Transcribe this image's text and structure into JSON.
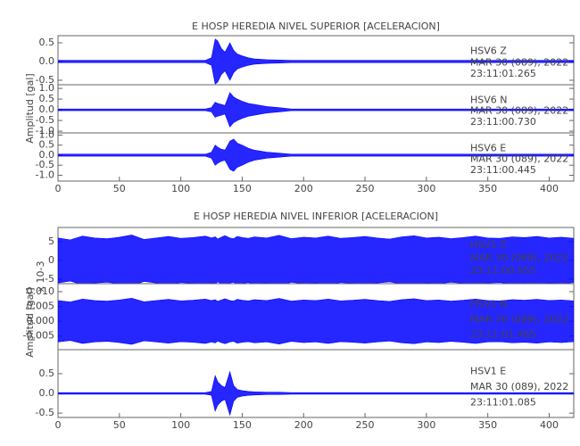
{
  "chart_data": [
    {
      "type": "line",
      "title": "E HOSP HEREDIA NIVEL SUPERIOR [ACELERACION]",
      "ylabel": "Amplitud [gal]",
      "xlim": [
        0,
        420
      ],
      "xticks": [
        0,
        50,
        100,
        150,
        200,
        250,
        300,
        350,
        400
      ],
      "x": [
        0,
        10,
        20,
        30,
        40,
        50,
        60,
        70,
        80,
        90,
        100,
        110,
        120,
        125,
        128,
        130,
        133,
        136,
        140,
        143,
        146,
        150,
        155,
        160,
        170,
        180,
        190,
        200,
        210,
        220,
        230,
        240,
        250,
        260,
        270,
        280,
        290,
        300,
        310,
        320,
        330,
        340,
        350,
        360,
        370,
        380,
        390,
        400,
        410,
        420
      ],
      "panels": [
        {
          "station": "HSV6   Z",
          "date": "MAR 30 (089), 2022",
          "time": "23:11:01.265",
          "color": "#0000ff",
          "ylim": [
            -0.62,
            0.69
          ],
          "yticks": [
            {
              "value": 0.5,
              "label": "0.5"
            },
            {
              "value": 0,
              "label": "0.0"
            },
            {
              "value": -0.5,
              "label": "-0.5"
            }
          ],
          "values": [
            0.03,
            0.03,
            0.03,
            0.03,
            0.03,
            0.03,
            0.03,
            0.03,
            0.03,
            0.03,
            0.03,
            0.03,
            0.03,
            0.1,
            0.6,
            0.55,
            0.35,
            0.25,
            0.5,
            0.3,
            0.2,
            0.15,
            0.1,
            0.07,
            0.05,
            0.04,
            0.03,
            0.03,
            0.03,
            0.03,
            0.03,
            0.03,
            0.03,
            0.03,
            0.03,
            0.03,
            0.03,
            0.03,
            0.03,
            0.03,
            0.03,
            0.03,
            0.03,
            0.03,
            0.03,
            0.03,
            0.03,
            0.03,
            0.03,
            0.03
          ]
        },
        {
          "station": "HSV6   N",
          "date": "MAR 30 (089), 2022",
          "time": "23:11:00.730",
          "color": "#0000ff",
          "ylim": [
            -1.08,
            1.17
          ],
          "yticks": [
            {
              "value": 1,
              "label": "1.0"
            },
            {
              "value": 0.5,
              "label": "0.5"
            },
            {
              "value": 0,
              "label": "0.0"
            },
            {
              "value": -0.5,
              "label": "-0.5"
            },
            {
              "value": -1,
              "label": "-1.0"
            }
          ],
          "values": [
            0.04,
            0.04,
            0.04,
            0.04,
            0.04,
            0.04,
            0.04,
            0.04,
            0.04,
            0.04,
            0.04,
            0.04,
            0.04,
            0.1,
            0.35,
            0.3,
            0.25,
            0.2,
            0.8,
            0.6,
            0.5,
            0.4,
            0.3,
            0.25,
            0.15,
            0.1,
            0.04,
            0.04,
            0.04,
            0.04,
            0.04,
            0.04,
            0.04,
            0.04,
            0.04,
            0.04,
            0.04,
            0.04,
            0.04,
            0.04,
            0.04,
            0.04,
            0.04,
            0.04,
            0.04,
            0.04,
            0.04,
            0.04,
            0.04,
            0.04
          ]
        },
        {
          "station": "HSV6   E",
          "date": "MAR 30 (089), 2022",
          "time": "23:11:00.445",
          "color": "#0000ff",
          "ylim": [
            -1.29,
            1.11
          ],
          "yticks": [
            {
              "value": 1,
              "label": "1.0"
            },
            {
              "value": 0.5,
              "label": "0.5"
            },
            {
              "value": 0,
              "label": "0.0"
            },
            {
              "value": -0.5,
              "label": "-0.5"
            },
            {
              "value": -1,
              "label": "-1.0"
            }
          ],
          "values": [
            0.05,
            0.05,
            0.05,
            0.05,
            0.05,
            0.05,
            0.05,
            0.05,
            0.05,
            0.05,
            0.05,
            0.05,
            0.05,
            0.15,
            0.5,
            0.4,
            0.3,
            0.25,
            0.7,
            0.8,
            0.6,
            0.5,
            0.35,
            0.25,
            0.15,
            0.1,
            0.05,
            0.05,
            0.05,
            0.05,
            0.05,
            0.05,
            0.05,
            0.05,
            0.05,
            0.05,
            0.05,
            0.05,
            0.05,
            0.05,
            0.05,
            0.05,
            0.05,
            0.05,
            0.05,
            0.05,
            0.05,
            0.05,
            0.05,
            0.05
          ]
        }
      ]
    },
    {
      "type": "line",
      "title": "E HOSP HEREDIA NIVEL INFERIOR [ACELERACION]",
      "ylabel": "Amplitud [gal]",
      "xlim": [
        0,
        420
      ],
      "xticks": [
        0,
        50,
        100,
        150,
        200,
        250,
        300,
        350,
        400
      ],
      "x": [
        0,
        10,
        20,
        30,
        40,
        50,
        60,
        70,
        80,
        90,
        100,
        110,
        120,
        125,
        128,
        130,
        133,
        136,
        140,
        143,
        146,
        150,
        155,
        160,
        170,
        180,
        190,
        200,
        210,
        220,
        230,
        240,
        250,
        260,
        270,
        280,
        290,
        300,
        310,
        320,
        330,
        340,
        350,
        360,
        370,
        380,
        390,
        400,
        410,
        420
      ],
      "panels": [
        {
          "station": "HSV1   Z",
          "date": "MAR 30 (089), 2022",
          "time": "23:11:00.955",
          "color": "#0000ff",
          "annotation": "x 10-3",
          "ylim": [
            -6.2,
            8.8
          ],
          "yticks": [
            5,
            0,
            -5
          ],
          "values": [
            6,
            5.5,
            6.5,
            6,
            5.8,
            6.2,
            6.8,
            5.6,
            6,
            6.4,
            5.9,
            6.1,
            6.5,
            6,
            6.3,
            5.7,
            6.2,
            6.6,
            6,
            5.8,
            6.4,
            6.1,
            5.9,
            6.3,
            6,
            6.7,
            5.8,
            6.2,
            6,
            6.5,
            5.9,
            6.1,
            6.4,
            6,
            5.7,
            6.3,
            6.6,
            6,
            6.2,
            5.8,
            6.1,
            6.5,
            6,
            5.9,
            6.3,
            6.1,
            6.4,
            6,
            6.2,
            5.9
          ]
        },
        {
          "station": "HSV1   N",
          "date": "MAR 30 (089), 2022",
          "time": "23:11:01.465",
          "color": "#0000ff",
          "ylim": [
            -0.0096,
            0.0127
          ],
          "yticks": [
            {
              "value": 0.01,
              "label": "0.010"
            },
            {
              "value": 0.005,
              "label": "0.005"
            },
            {
              "value": 0,
              "label": "0.000"
            },
            {
              "value": -0.005,
              "label": "-0.005"
            }
          ],
          "values": [
            0.007,
            0.0065,
            0.0075,
            0.007,
            0.0068,
            0.0072,
            0.0078,
            0.0066,
            0.007,
            0.0074,
            0.0069,
            0.0071,
            0.0075,
            0.007,
            0.0073,
            0.0067,
            0.0072,
            0.0076,
            0.007,
            0.0068,
            0.0074,
            0.0071,
            0.0069,
            0.0073,
            0.007,
            0.0077,
            0.0068,
            0.0072,
            0.007,
            0.0075,
            0.0069,
            0.0071,
            0.0074,
            0.007,
            0.0067,
            0.0073,
            0.0076,
            0.007,
            0.0072,
            0.0068,
            0.0071,
            0.0075,
            0.007,
            0.0069,
            0.0073,
            0.0071,
            0.0074,
            0.007,
            0.0072,
            0.0069
          ]
        },
        {
          "station": "HSV1   E",
          "date": "MAR 30 (089), 2022",
          "time": "23:11:01.085",
          "color": "#0000ff",
          "ylim": [
            -0.61,
            1.11
          ],
          "yticks": [
            {
              "value": 0.5,
              "label": "0.5"
            },
            {
              "value": 0,
              "label": "0.0"
            },
            {
              "value": -0.5,
              "label": "-0.5"
            }
          ],
          "values": [
            0.02,
            0.02,
            0.02,
            0.02,
            0.02,
            0.02,
            0.02,
            0.02,
            0.02,
            0.02,
            0.02,
            0.02,
            0.02,
            0.05,
            0.45,
            0.3,
            0.2,
            0.15,
            0.55,
            0.2,
            0.1,
            0.07,
            0.05,
            0.04,
            0.03,
            0.03,
            0.02,
            0.02,
            0.02,
            0.02,
            0.02,
            0.02,
            0.02,
            0.02,
            0.02,
            0.02,
            0.02,
            0.02,
            0.02,
            0.02,
            0.02,
            0.02,
            0.02,
            0.02,
            0.02,
            0.02,
            0.02,
            0.02,
            0.02,
            0.02
          ]
        }
      ]
    }
  ]
}
